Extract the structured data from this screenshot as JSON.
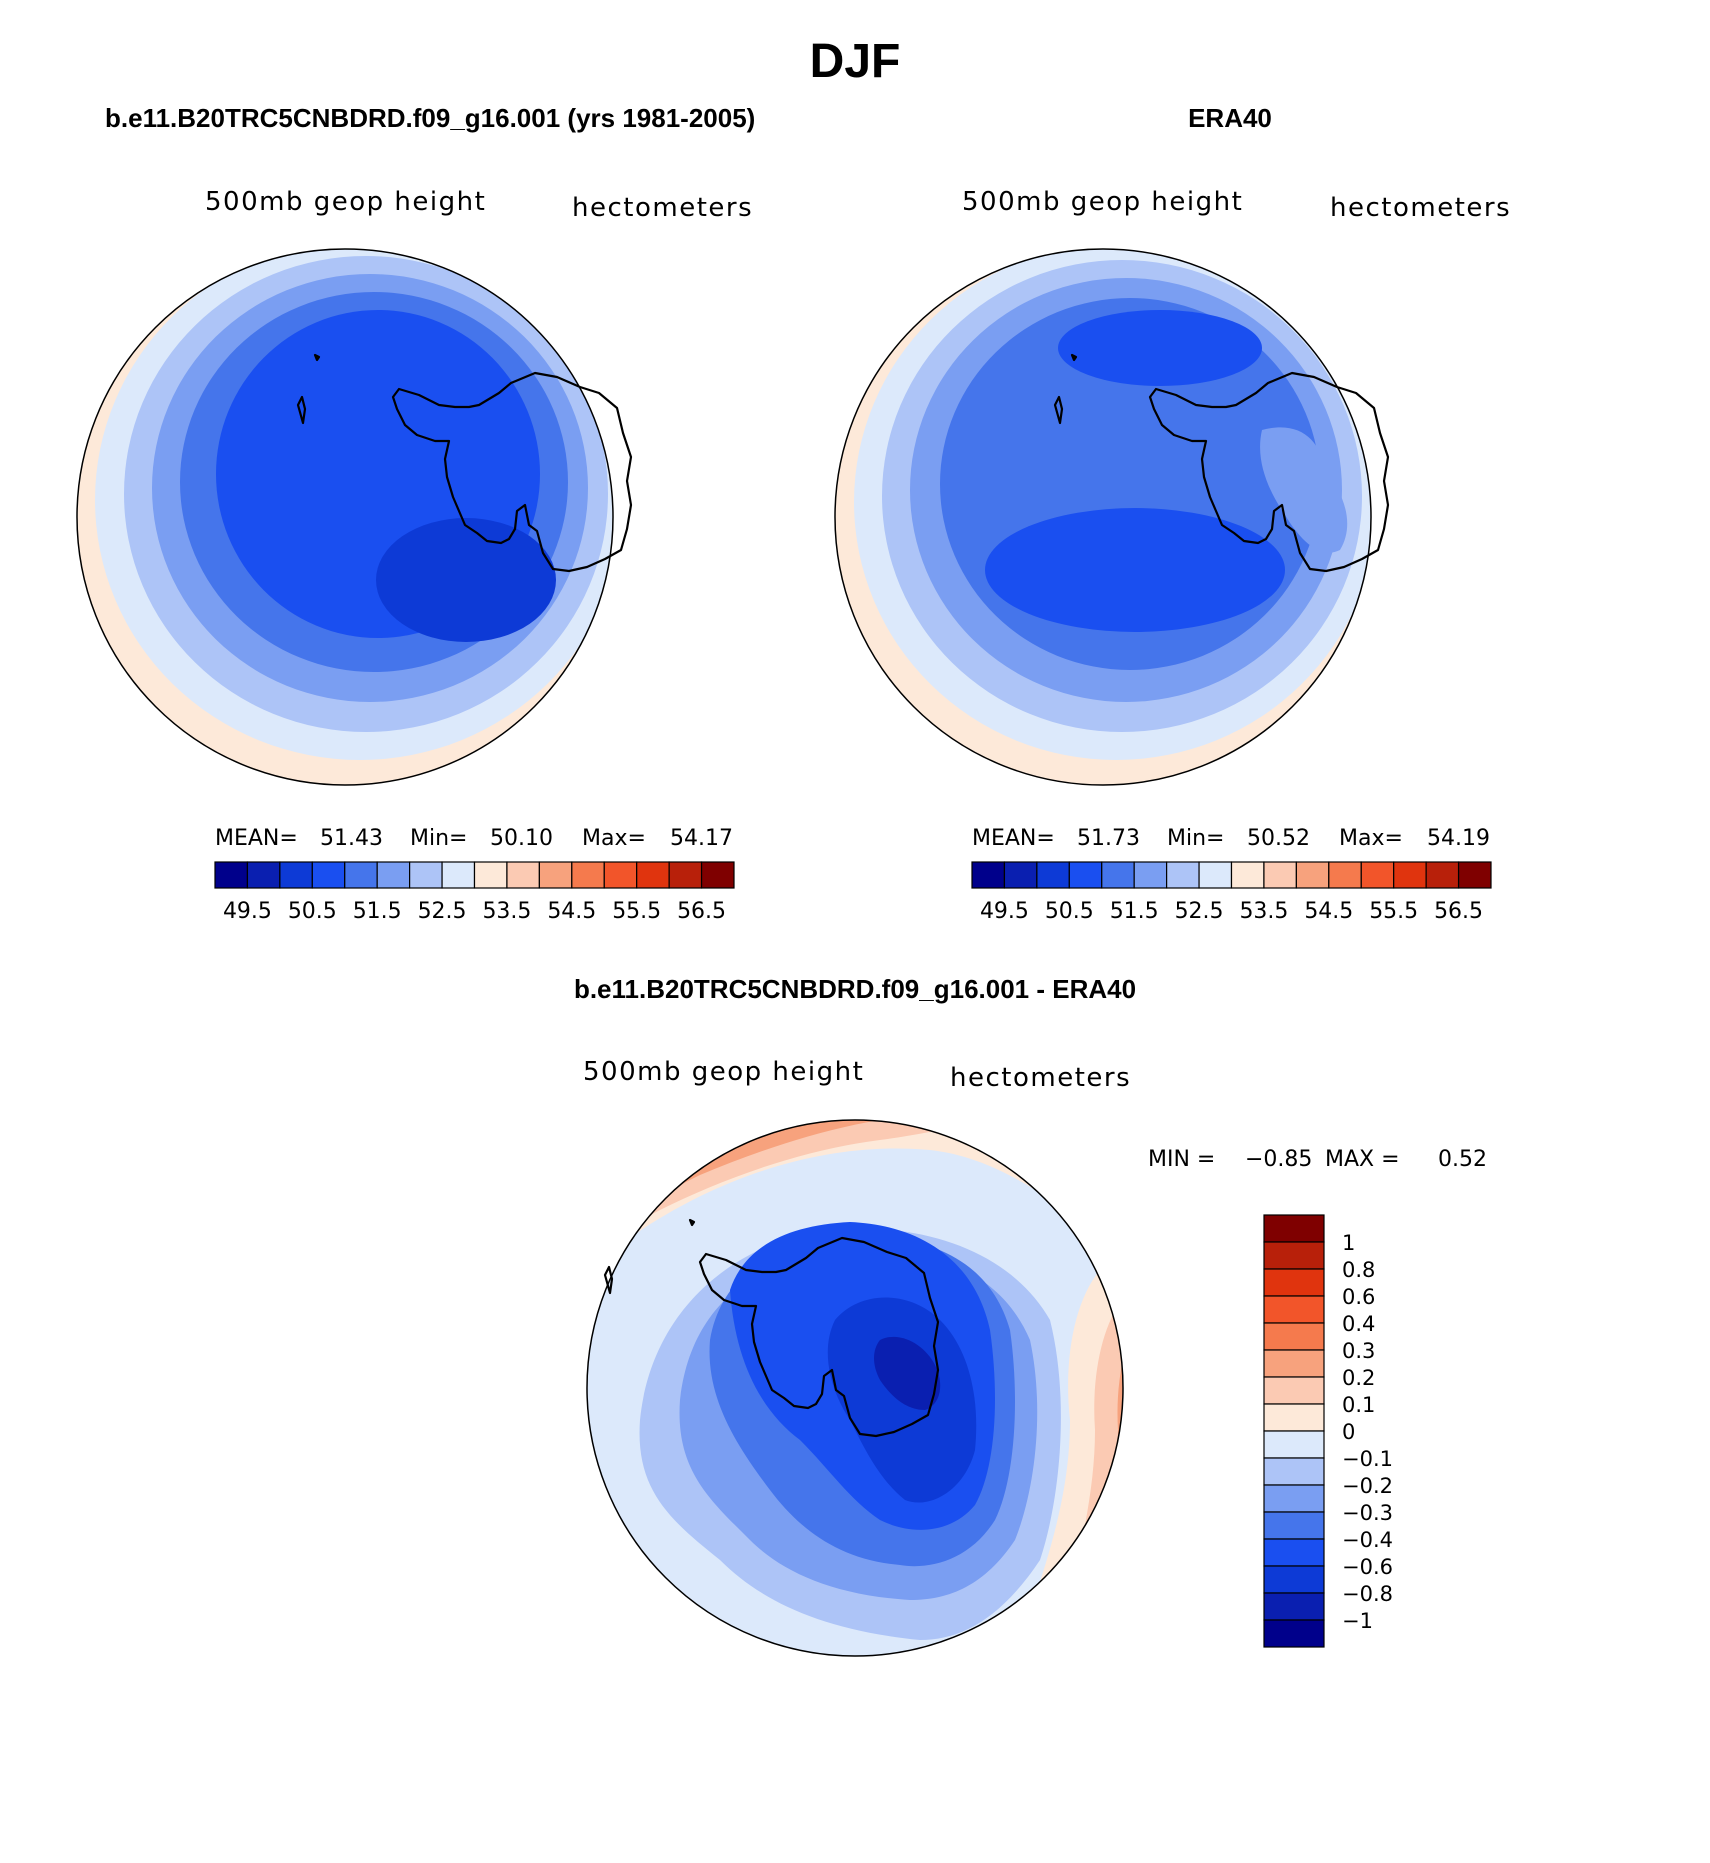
{
  "figure": {
    "title": "DJF"
  },
  "panels": [
    {
      "heading": "b.e11.B20TRC5CNBDRD.f09_g16.001 (yrs 1981-2005)",
      "left_label": "500mb geop height",
      "right_label": "hectometers",
      "stats": {
        "mean_label": "MEAN=",
        "mean": "51.43",
        "min_label": "Min=",
        "min": "50.10",
        "max_label": "Max=",
        "max": "54.17"
      }
    },
    {
      "heading": "ERA40",
      "left_label": "500mb geop height",
      "right_label": "hectometers",
      "stats": {
        "mean_label": "MEAN=",
        "mean": "51.73",
        "min_label": "Min=",
        "min": "50.52",
        "max_label": "Max=",
        "max": "54.19"
      }
    },
    {
      "heading": "b.e11.B20TRC5CNBDRD.f09_g16.001 - ERA40",
      "left_label": "500mb geop height",
      "right_label": "hectometers",
      "stats": {
        "min_label": "MIN =",
        "min": "−0.85",
        "max_label": "MAX =",
        "max": "0.52"
      }
    }
  ],
  "colorbar_abs": {
    "colors": [
      "#00008b",
      "#0a1fb0",
      "#0d3ad6",
      "#1a4ff0",
      "#4575eb",
      "#7a9ef2",
      "#adc4f7",
      "#dce9fb",
      "#fde9d9",
      "#fbcab3",
      "#f7a27d",
      "#f57a4d",
      "#f2552a",
      "#e0340e",
      "#b8200a",
      "#7f0000"
    ],
    "labels": [
      "49.5",
      "50.5",
      "51.5",
      "52.5",
      "53.5",
      "54.5",
      "55.5",
      "56.5"
    ]
  },
  "colorbar_diff": {
    "colors": [
      "#7f0000",
      "#b8200a",
      "#e0340e",
      "#f2552a",
      "#f57a4d",
      "#f7a27d",
      "#fbcab3",
      "#fde9d9",
      "#dce9fb",
      "#adc4f7",
      "#7a9ef2",
      "#4575eb",
      "#1a4ff0",
      "#0d3ad6",
      "#0a1fb0",
      "#00008b"
    ],
    "labels": [
      "1",
      "0.8",
      "0.6",
      "0.4",
      "0.3",
      "0.2",
      "0.1",
      "0",
      "−0.1",
      "−0.2",
      "−0.3",
      "−0.4",
      "−0.6",
      "−0.8",
      "−1"
    ]
  }
}
